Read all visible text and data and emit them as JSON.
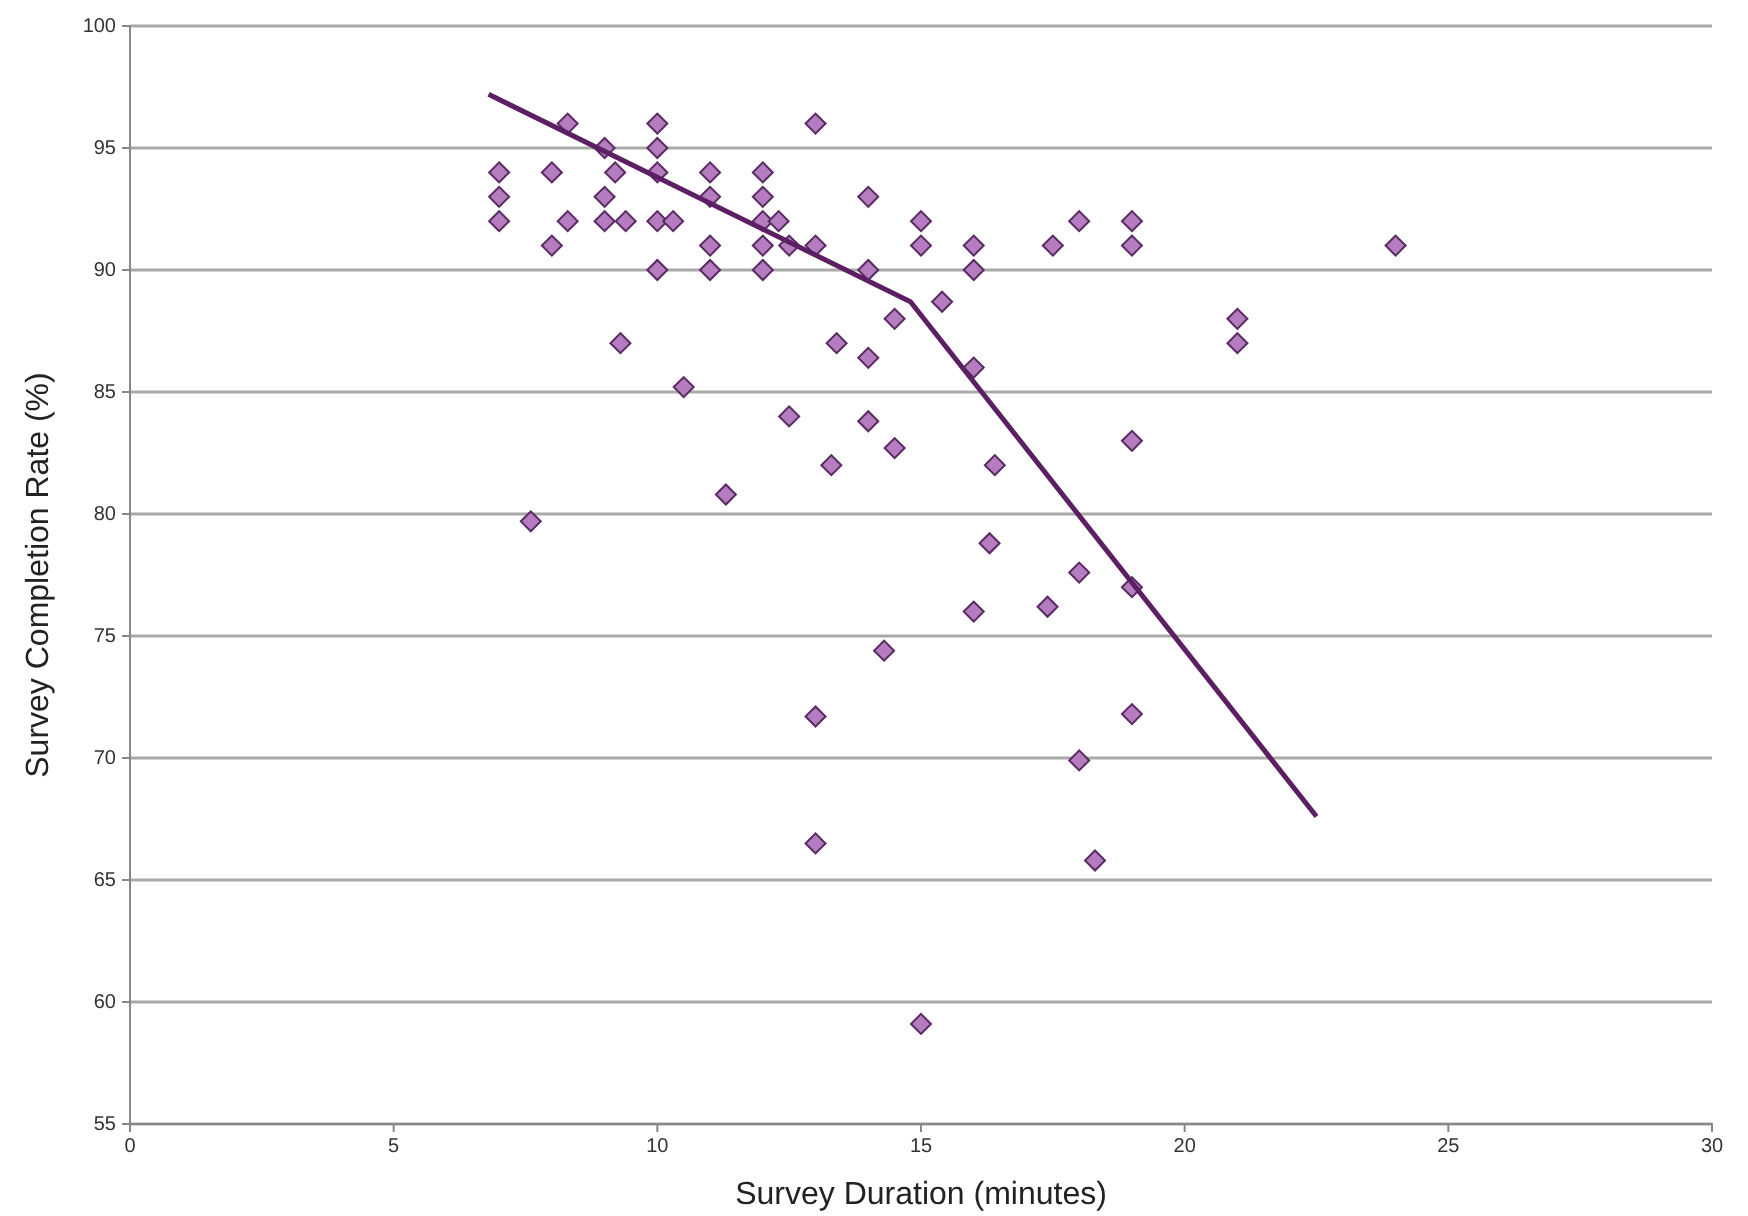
{
  "chart_data": {
    "type": "scatter",
    "xlabel": "Survey Duration (minutes)",
    "ylabel": "Survey Completion Rate (%)",
    "xlim": [
      0,
      30
    ],
    "xticks": [
      0,
      5,
      10,
      15,
      20,
      25,
      30
    ],
    "ylim": [
      55,
      100
    ],
    "yticks": [
      55,
      60,
      65,
      70,
      75,
      80,
      85,
      90,
      95,
      100
    ],
    "grid": "y",
    "marker": "diamond",
    "series": [
      {
        "color": "#b57dc0",
        "x": [
          7,
          7,
          7,
          7.6,
          8,
          8,
          8.3,
          8.3,
          9,
          9,
          9,
          9.2,
          9.3,
          9.4,
          10,
          10,
          10,
          10,
          10,
          10.3,
          10.5,
          11,
          11,
          11,
          11,
          11.3,
          12,
          12,
          12,
          12,
          12,
          12.3,
          12.5,
          12.5,
          13,
          13,
          13,
          13,
          13.3,
          13.4,
          14,
          14,
          14,
          14,
          14.3,
          14.5,
          14.5,
          15,
          15,
          15,
          15.4,
          16,
          16,
          16,
          16,
          16.3,
          16.4,
          17.4,
          17.5,
          18,
          18,
          18,
          18.3,
          19,
          19,
          19,
          19,
          19,
          21,
          21,
          24
        ],
        "values": [
          94,
          93,
          92,
          79.7,
          94,
          91,
          96,
          92,
          95,
          93,
          92,
          94,
          87,
          92,
          96,
          95,
          94,
          92,
          90,
          92,
          85.2,
          94,
          93,
          91,
          90,
          80.8,
          94,
          93,
          92,
          91,
          90,
          92,
          91,
          84,
          96,
          91,
          71.7,
          66.5,
          82,
          87,
          93,
          90,
          86.4,
          83.8,
          74.4,
          88,
          82.7,
          92,
          91,
          59.1,
          88.7,
          91,
          90,
          86,
          76,
          78.8,
          82,
          76.2,
          91,
          92,
          77.6,
          69.9,
          65.8,
          92,
          91,
          83,
          77,
          71.8,
          88,
          87,
          91
        ]
      },
      {
        "type": "line",
        "color": "#5c1f63",
        "marker": "none",
        "line_style": "solid",
        "x": [
          6.8,
          14.8,
          22.5
        ],
        "values": [
          97.2,
          88.7,
          67.6
        ]
      }
    ]
  }
}
